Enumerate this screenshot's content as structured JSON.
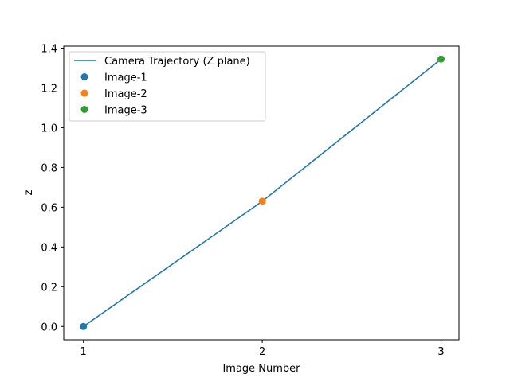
{
  "chart_data": {
    "type": "line",
    "xlabel": "Image Number",
    "ylabel": "z",
    "x_ticks": [
      1,
      2,
      3
    ],
    "y_ticks": [
      "0.0",
      "0.2",
      "0.4",
      "0.6",
      "0.8",
      "1.0",
      "1.2",
      "1.4"
    ],
    "xlim": [
      0.89,
      3.1
    ],
    "ylim": [
      -0.067,
      1.41
    ],
    "grid": false,
    "legend_position": "upper-left",
    "series": [
      {
        "name": "Camera Trajectory (Z plane)",
        "kind": "line",
        "color": "#1f77b4",
        "x": [
          1,
          2,
          3
        ],
        "y": [
          0.0,
          0.63,
          1.345
        ]
      },
      {
        "name": "Image-1",
        "kind": "scatter",
        "color": "#1f77b4",
        "x": [
          1
        ],
        "y": [
          0.0
        ]
      },
      {
        "name": "Image-2",
        "kind": "scatter",
        "color": "#ff7f0e",
        "x": [
          2
        ],
        "y": [
          0.63
        ]
      },
      {
        "name": "Image-3",
        "kind": "scatter",
        "color": "#2ca02c",
        "x": [
          3
        ],
        "y": [
          1.345
        ]
      }
    ]
  }
}
